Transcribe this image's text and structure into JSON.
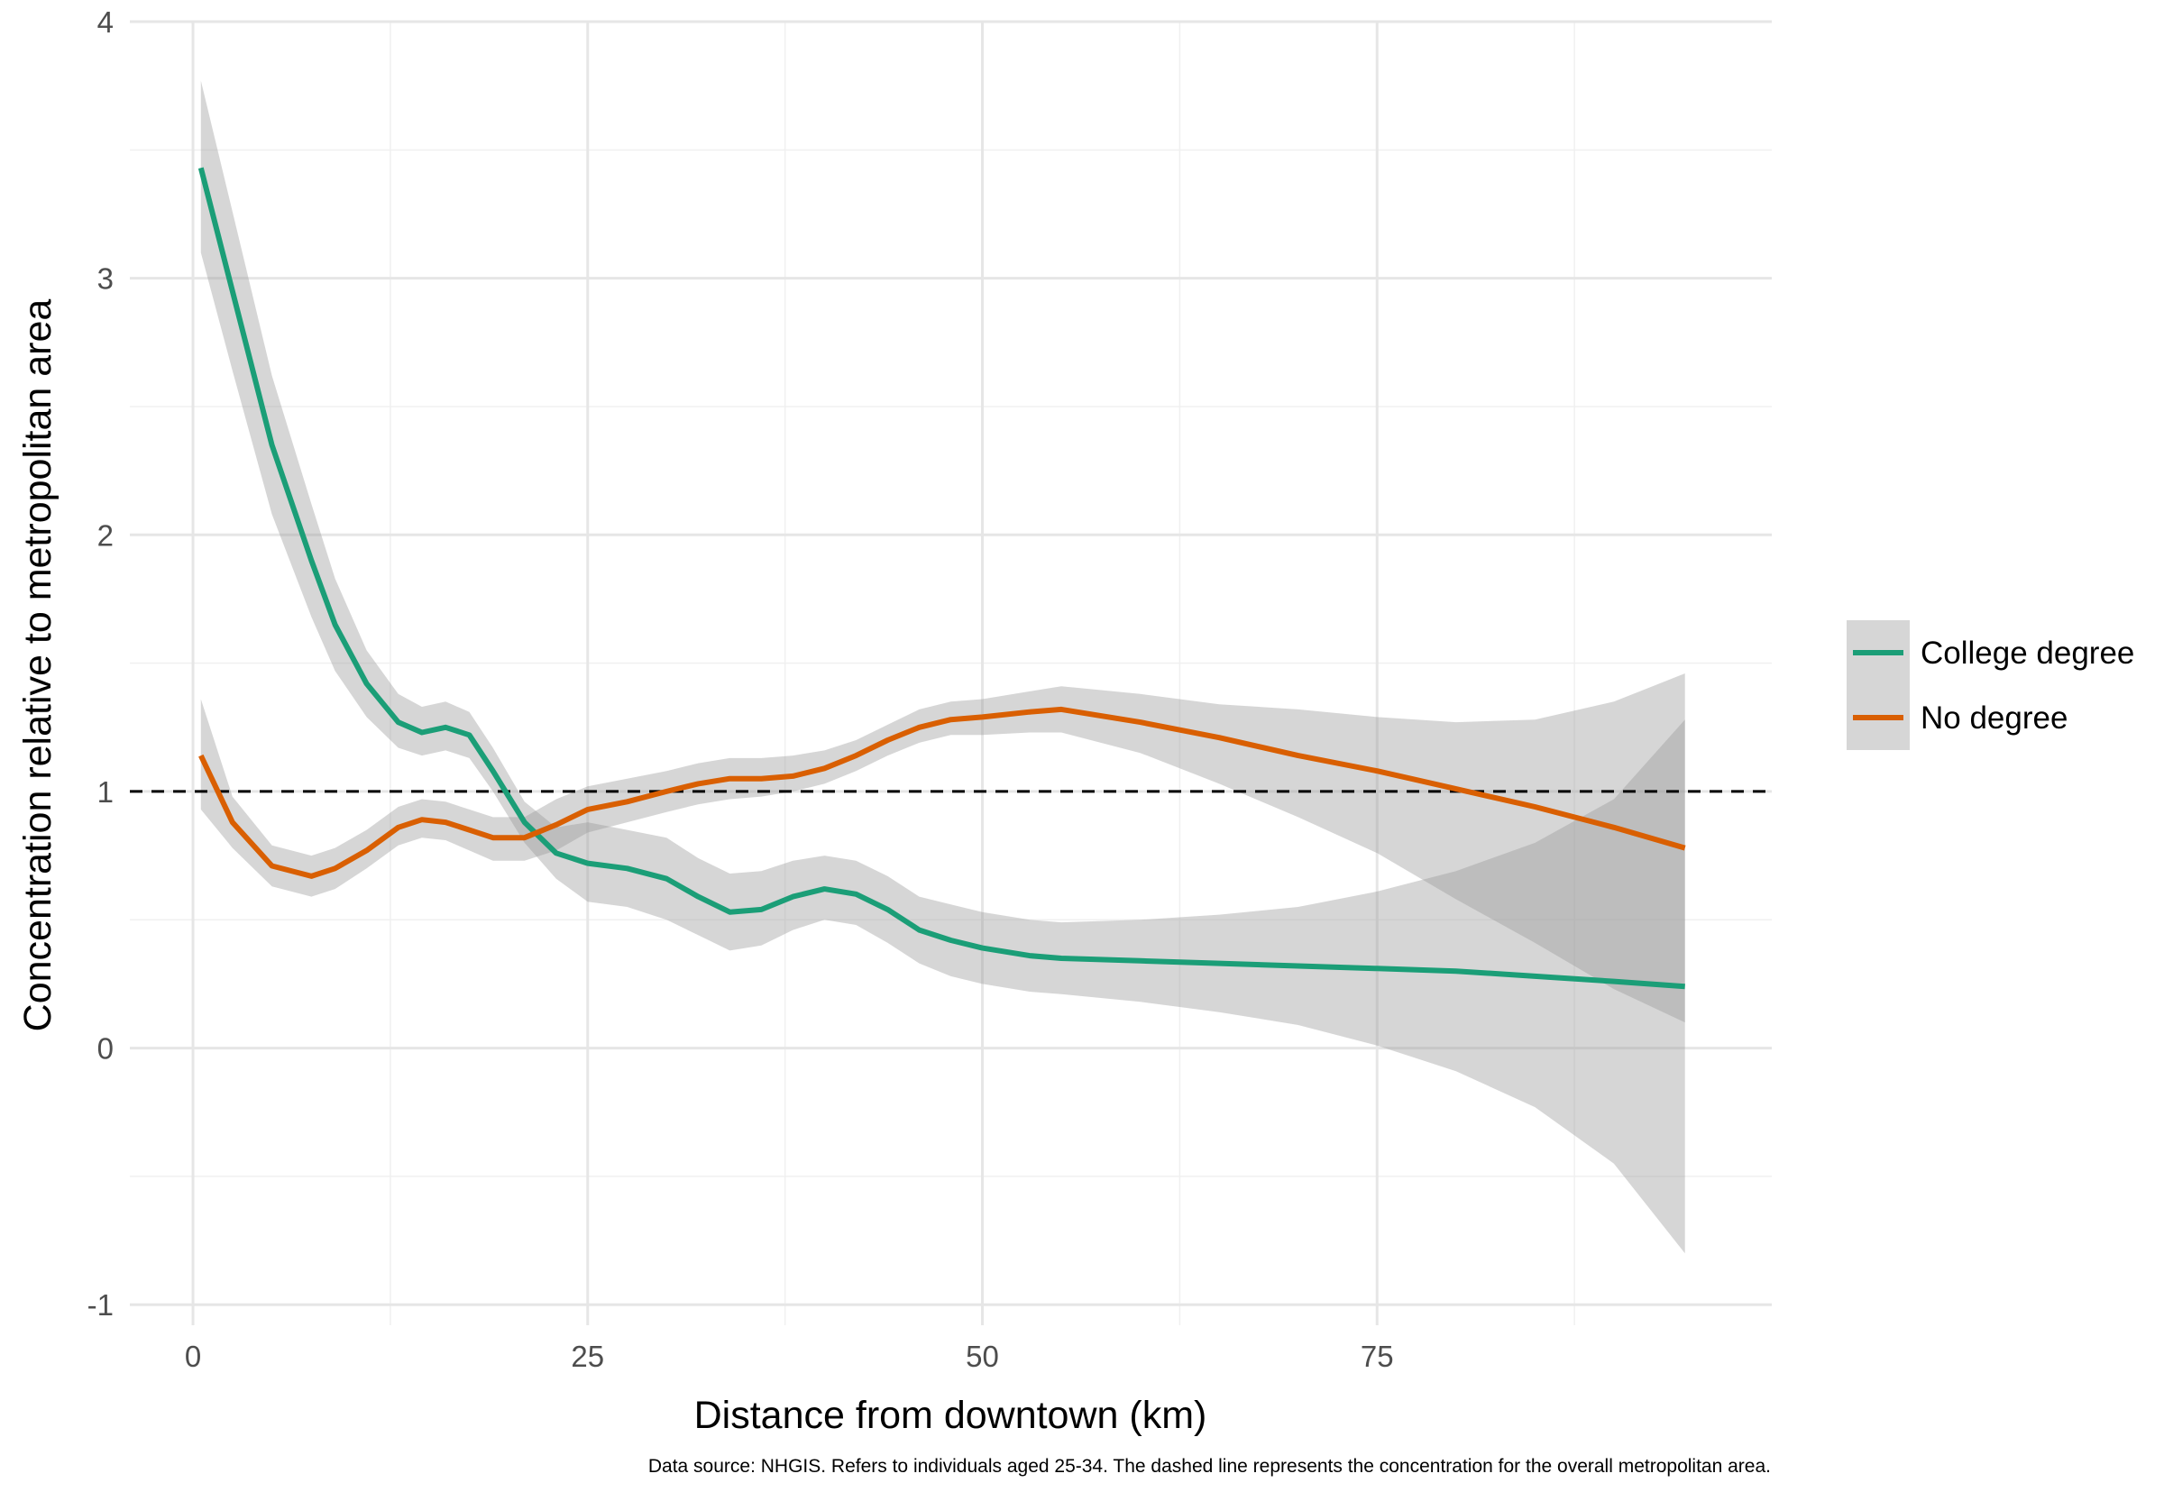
{
  "chart_data": {
    "type": "line",
    "title": "",
    "xlabel": "Distance from downtown (km)",
    "ylabel": "Concentration relative to metropolitan area",
    "caption": "Data source: NHGIS. Refers to individuals aged 25-34. The dashed line represents the concentration for the overall metropolitan area.",
    "xlim": [
      -4,
      100
    ],
    "ylim": [
      -1.08,
      4.0
    ],
    "x_ticks": [
      0,
      25,
      50,
      75
    ],
    "x_tick_labels": [
      "0",
      "25",
      "50",
      "75"
    ],
    "y_ticks": [
      -1,
      0,
      1,
      2,
      3,
      4
    ],
    "y_tick_labels": [
      "-1",
      "0",
      "1",
      "2",
      "3",
      "4"
    ],
    "grid": true,
    "legend_position": "right",
    "reference_line": {
      "y": 1,
      "style": "dashed",
      "color": "#000000"
    },
    "confidence_band_color": "#999999",
    "series": [
      {
        "name": "College degree",
        "color": "#1b9e77",
        "x": [
          0.5,
          2.5,
          5,
          7.5,
          9,
          11,
          13,
          14.5,
          16,
          17.5,
          19,
          21,
          23,
          25,
          27.5,
          30,
          32,
          34,
          36,
          38,
          40,
          42,
          44,
          46,
          48,
          50,
          53,
          55,
          60,
          65,
          70,
          75,
          80,
          85,
          90,
          94.5
        ],
        "y": [
          3.43,
          2.95,
          2.35,
          1.9,
          1.65,
          1.42,
          1.27,
          1.23,
          1.25,
          1.22,
          1.08,
          0.88,
          0.76,
          0.72,
          0.7,
          0.66,
          0.59,
          0.53,
          0.54,
          0.59,
          0.62,
          0.6,
          0.54,
          0.46,
          0.42,
          0.39,
          0.36,
          0.35,
          0.34,
          0.33,
          0.32,
          0.31,
          0.3,
          0.28,
          0.26,
          0.24
        ],
        "lower": [
          3.1,
          2.64,
          2.08,
          1.68,
          1.47,
          1.29,
          1.17,
          1.14,
          1.16,
          1.13,
          1.0,
          0.8,
          0.66,
          0.57,
          0.55,
          0.5,
          0.44,
          0.38,
          0.4,
          0.46,
          0.5,
          0.48,
          0.41,
          0.33,
          0.28,
          0.25,
          0.22,
          0.21,
          0.18,
          0.14,
          0.09,
          0.01,
          -0.09,
          -0.23,
          -0.45,
          -0.8
        ],
        "upper": [
          3.77,
          3.26,
          2.62,
          2.12,
          1.83,
          1.55,
          1.38,
          1.33,
          1.35,
          1.31,
          1.17,
          0.96,
          0.86,
          0.88,
          0.85,
          0.82,
          0.74,
          0.68,
          0.69,
          0.73,
          0.75,
          0.73,
          0.67,
          0.59,
          0.56,
          0.53,
          0.5,
          0.49,
          0.5,
          0.52,
          0.55,
          0.61,
          0.69,
          0.8,
          0.97,
          1.28
        ]
      },
      {
        "name": "No degree",
        "color": "#d95f02",
        "x": [
          0.5,
          2.5,
          5,
          7.5,
          9,
          11,
          13,
          14.5,
          16,
          17.5,
          19,
          21,
          23,
          25,
          27.5,
          30,
          32,
          34,
          36,
          38,
          40,
          42,
          44,
          46,
          48,
          50,
          53,
          55,
          60,
          65,
          70,
          75,
          80,
          85,
          90,
          94.5
        ],
        "y": [
          1.14,
          0.88,
          0.71,
          0.67,
          0.7,
          0.77,
          0.86,
          0.89,
          0.88,
          0.85,
          0.82,
          0.82,
          0.87,
          0.93,
          0.96,
          1.0,
          1.03,
          1.05,
          1.05,
          1.06,
          1.09,
          1.14,
          1.2,
          1.25,
          1.28,
          1.29,
          1.31,
          1.32,
          1.27,
          1.21,
          1.14,
          1.08,
          1.01,
          0.94,
          0.86,
          0.78
        ],
        "lower": [
          0.93,
          0.78,
          0.63,
          0.59,
          0.62,
          0.7,
          0.79,
          0.82,
          0.81,
          0.77,
          0.73,
          0.73,
          0.77,
          0.84,
          0.88,
          0.92,
          0.95,
          0.97,
          0.98,
          1.0,
          1.03,
          1.08,
          1.14,
          1.19,
          1.22,
          1.22,
          1.23,
          1.23,
          1.15,
          1.03,
          0.9,
          0.76,
          0.58,
          0.41,
          0.23,
          0.1
        ],
        "upper": [
          1.36,
          0.98,
          0.79,
          0.75,
          0.78,
          0.85,
          0.94,
          0.97,
          0.96,
          0.93,
          0.9,
          0.9,
          0.97,
          1.02,
          1.05,
          1.08,
          1.11,
          1.13,
          1.13,
          1.14,
          1.16,
          1.2,
          1.26,
          1.32,
          1.35,
          1.36,
          1.39,
          1.41,
          1.38,
          1.34,
          1.32,
          1.29,
          1.27,
          1.28,
          1.35,
          1.46
        ]
      }
    ]
  }
}
